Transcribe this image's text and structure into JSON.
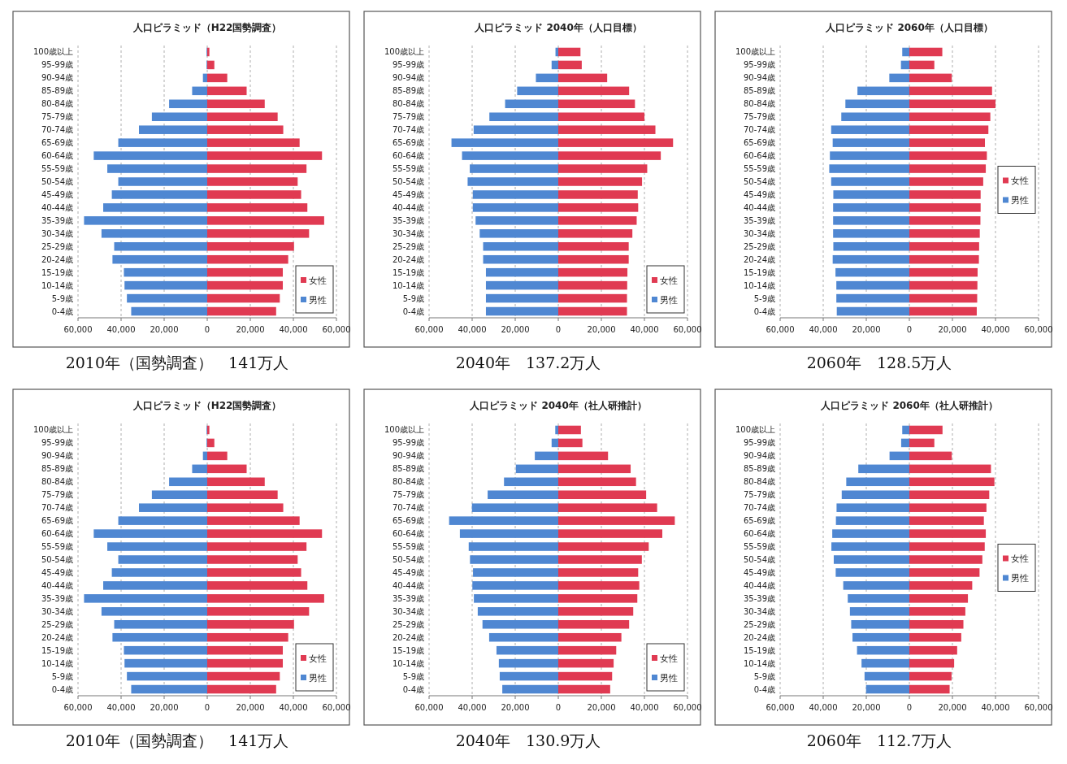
{
  "chart_data": [
    {
      "type": "bar",
      "orientation": "horizontal",
      "stacked": true,
      "title": "人口ピラミッド（H22国勢調査）",
      "categories": [
        "100歳以上",
        "95-99歳",
        "90-94歳",
        "85-89歳",
        "80-84歳",
        "75-79歳",
        "70-74歳",
        "65-69歳",
        "60-64歳",
        "55-59歳",
        "50-54歳",
        "45-49歳",
        "40-44歳",
        "35-39歳",
        "30-34歳",
        "25-29歳",
        "20-24歳",
        "15-19歳",
        "10-14歳",
        "5-9歳",
        "0-4歳"
      ],
      "series": [
        {
          "name": "女性",
          "color": "#e03a52",
          "values": [
            1000,
            3300,
            9300,
            18300,
            26700,
            32700,
            35300,
            42900,
            53300,
            46100,
            42000,
            43600,
            46500,
            54300,
            47300,
            40300,
            37600,
            35100,
            35100,
            33700,
            32000
          ]
        },
        {
          "name": "男性",
          "color": "#4f87d2",
          "values": [
            -300,
            -300,
            -2000,
            -7000,
            -17700,
            -25700,
            -31700,
            -41300,
            -52700,
            -46400,
            -41300,
            -44300,
            -48300,
            -57200,
            -49100,
            -43200,
            -44000,
            -38700,
            -38400,
            -37300,
            -35300
          ]
        }
      ],
      "xlim": [
        -60000,
        60000
      ],
      "xticks": [
        {
          "value": -60000,
          "label": "60,000"
        },
        {
          "value": -40000,
          "label": "40,000"
        },
        {
          "value": -20000,
          "label": "20,000"
        },
        {
          "value": 0,
          "label": "0"
        },
        {
          "value": 20000,
          "label": "20,000"
        },
        {
          "value": 40000,
          "label": "40,000"
        },
        {
          "value": 60000,
          "label": "60,000"
        }
      ],
      "grid": "x",
      "legend": "bottom right",
      "annotations": [
        "2010年（国勢調査）　141万人"
      ]
    },
    {
      "type": "bar",
      "orientation": "horizontal",
      "stacked": true,
      "title": "人口ピラミッド 2040年（人口目標）",
      "categories": [
        "100歳以上",
        "95-99歳",
        "90-94歳",
        "85-89歳",
        "80-84歳",
        "75-79歳",
        "70-74歳",
        "65-69歳",
        "60-64歳",
        "55-59歳",
        "50-54歳",
        "45-49歳",
        "40-44歳",
        "35-39歳",
        "30-34歳",
        "25-29歳",
        "20-24歳",
        "15-19歳",
        "10-14歳",
        "5-9歳",
        "0-4歳"
      ],
      "series": [
        {
          "name": "女性",
          "color": "#e03a52",
          "values": [
            10300,
            10900,
            22700,
            32900,
            35600,
            40000,
            45100,
            53300,
            47600,
            41300,
            38900,
            36900,
            37100,
            36400,
            34400,
            32700,
            32700,
            32100,
            32000,
            31900,
            31900
          ]
        },
        {
          "name": "男性",
          "color": "#4f87d2",
          "values": [
            -1300,
            -3100,
            -10400,
            -19100,
            -24700,
            -32000,
            -39300,
            -49600,
            -44700,
            -41100,
            -42100,
            -39700,
            -39700,
            -38400,
            -36500,
            -34900,
            -34900,
            -33600,
            -33600,
            -33600,
            -33600
          ]
        }
      ],
      "xlim": [
        -60000,
        60000
      ],
      "xticks": [
        {
          "value": -60000,
          "label": "60,000"
        },
        {
          "value": -40000,
          "label": "40,000"
        },
        {
          "value": -20000,
          "label": "20,000"
        },
        {
          "value": 0,
          "label": "0"
        },
        {
          "value": 20000,
          "label": "20,000"
        },
        {
          "value": 40000,
          "label": "40,000"
        },
        {
          "value": 60000,
          "label": "60,000"
        }
      ],
      "grid": "x",
      "legend": "bottom right",
      "annotations": [
        "2040年　137.2万人"
      ]
    },
    {
      "type": "bar",
      "orientation": "horizontal",
      "stacked": true,
      "title": "人口ピラミッド 2060年（人口目標）",
      "categories": [
        "100歳以上",
        "95-99歳",
        "90-94歳",
        "85-89歳",
        "80-84歳",
        "75-79歳",
        "70-74歳",
        "65-69歳",
        "60-64歳",
        "55-59歳",
        "50-54歳",
        "45-49歳",
        "40-44歳",
        "35-39歳",
        "30-34歳",
        "25-29歳",
        "20-24歳",
        "15-19歳",
        "10-14歳",
        "5-9歳",
        "0-4歳"
      ],
      "series": [
        {
          "name": "女性",
          "color": "#e03a52",
          "values": [
            15300,
            11600,
            19700,
            38400,
            40000,
            37600,
            36700,
            35100,
            36000,
            35500,
            34300,
            33100,
            33100,
            33000,
            32700,
            32400,
            32300,
            31700,
            31600,
            31500,
            31300
          ]
        },
        {
          "name": "男性",
          "color": "#4f87d2",
          "values": [
            -3300,
            -3900,
            -9300,
            -24100,
            -29700,
            -31600,
            -36300,
            -35600,
            -36900,
            -37200,
            -36300,
            -35300,
            -35400,
            -35400,
            -35400,
            -35300,
            -35600,
            -34300,
            -33900,
            -33900,
            -33700
          ]
        }
      ],
      "xlim": [
        -60000,
        60000
      ],
      "xticks": [
        {
          "value": -60000,
          "label": "60,000"
        },
        {
          "value": -40000,
          "label": "40,000"
        },
        {
          "value": -20000,
          "label": "20,000"
        },
        {
          "value": 0,
          "label": "0"
        },
        {
          "value": 20000,
          "label": "20,000"
        },
        {
          "value": 40000,
          "label": "40,000"
        },
        {
          "value": 60000,
          "label": "60,000"
        }
      ],
      "grid": "x",
      "legend": "right",
      "annotations": [
        "2060年　128.5万人"
      ]
    },
    {
      "type": "bar",
      "orientation": "horizontal",
      "stacked": true,
      "title": "人口ピラミッド（H22国勢調査）",
      "categories": [
        "100歳以上",
        "95-99歳",
        "90-94歳",
        "85-89歳",
        "80-84歳",
        "75-79歳",
        "70-74歳",
        "65-69歳",
        "60-64歳",
        "55-59歳",
        "50-54歳",
        "45-49歳",
        "40-44歳",
        "35-39歳",
        "30-34歳",
        "25-29歳",
        "20-24歳",
        "15-19歳",
        "10-14歳",
        "5-9歳",
        "0-4歳"
      ],
      "series": [
        {
          "name": "女性",
          "color": "#e03a52",
          "values": [
            1000,
            3300,
            9300,
            18300,
            26700,
            32700,
            35300,
            42900,
            53300,
            46100,
            42000,
            43600,
            46500,
            54300,
            47300,
            40300,
            37600,
            35100,
            35100,
            33700,
            32000
          ]
        },
        {
          "name": "男性",
          "color": "#4f87d2",
          "values": [
            -300,
            -300,
            -2000,
            -7000,
            -17700,
            -25700,
            -31700,
            -41300,
            -52700,
            -46400,
            -41300,
            -44300,
            -48300,
            -57200,
            -49100,
            -43200,
            -44000,
            -38700,
            -38400,
            -37300,
            -35300
          ]
        }
      ],
      "xlim": [
        -60000,
        60000
      ],
      "xticks": [
        {
          "value": -60000,
          "label": "60,000"
        },
        {
          "value": -40000,
          "label": "40,000"
        },
        {
          "value": -20000,
          "label": "20,000"
        },
        {
          "value": 0,
          "label": "0"
        },
        {
          "value": 20000,
          "label": "20,000"
        },
        {
          "value": 40000,
          "label": "40,000"
        },
        {
          "value": 60000,
          "label": "60,000"
        }
      ],
      "grid": "x",
      "legend": "bottom right",
      "annotations": [
        "2010年（国勢調査）　141万人"
      ]
    },
    {
      "type": "bar",
      "orientation": "horizontal",
      "stacked": true,
      "title": "人口ピラミッド 2040年（社人研推計）",
      "categories": [
        "100歳以上",
        "95-99歳",
        "90-94歳",
        "85-89歳",
        "80-84歳",
        "75-79歳",
        "70-74歳",
        "65-69歳",
        "60-64歳",
        "55-59歳",
        "50-54歳",
        "45-49歳",
        "40-44歳",
        "35-39歳",
        "30-34歳",
        "25-29歳",
        "20-24歳",
        "15-19歳",
        "10-14歳",
        "5-9歳",
        "0-4歳"
      ],
      "series": [
        {
          "name": "女性",
          "color": "#e03a52",
          "values": [
            10500,
            11200,
            23100,
            33600,
            36100,
            40800,
            45900,
            54100,
            48300,
            42000,
            38800,
            37100,
            37600,
            36700,
            34800,
            32900,
            29300,
            26900,
            25700,
            25000,
            24100
          ]
        },
        {
          "name": "男性",
          "color": "#4f87d2",
          "values": [
            -1400,
            -3100,
            -10900,
            -19700,
            -25200,
            -32800,
            -40100,
            -50700,
            -45700,
            -41600,
            -41000,
            -39600,
            -39900,
            -39200,
            -37400,
            -35200,
            -32100,
            -28700,
            -27600,
            -27200,
            -26000
          ]
        }
      ],
      "xlim": [
        -60000,
        60000
      ],
      "xticks": [
        {
          "value": -60000,
          "label": "60,000"
        },
        {
          "value": -40000,
          "label": "40,000"
        },
        {
          "value": -20000,
          "label": "20,000"
        },
        {
          "value": 0,
          "label": "0"
        },
        {
          "value": 20000,
          "label": "20,000"
        },
        {
          "value": 40000,
          "label": "40,000"
        },
        {
          "value": 60000,
          "label": "60,000"
        }
      ],
      "grid": "x",
      "legend": "bottom right",
      "annotations": [
        "2040年　130.9万人"
      ]
    },
    {
      "type": "bar",
      "orientation": "horizontal",
      "stacked": true,
      "title": "人口ピラミッド 2060年（社人研推計）",
      "categories": [
        "100歳以上",
        "95-99歳",
        "90-94歳",
        "85-89歳",
        "80-84歳",
        "75-79歳",
        "70-74歳",
        "65-69歳",
        "60-64歳",
        "55-59歳",
        "50-54歳",
        "45-49歳",
        "40-44歳",
        "35-39歳",
        "30-34歳",
        "25-29歳",
        "20-24歳",
        "15-19歳",
        "10-14歳",
        "5-9歳",
        "0-4歳"
      ],
      "series": [
        {
          "name": "女性",
          "color": "#e03a52",
          "values": [
            15400,
            11600,
            19700,
            37900,
            39500,
            37100,
            35800,
            34600,
            35500,
            35000,
            33900,
            32600,
            29200,
            27200,
            26000,
            25100,
            24100,
            22200,
            20800,
            19600,
            18700
          ]
        },
        {
          "name": "男性",
          "color": "#4f87d2",
          "values": [
            -3300,
            -3800,
            -9200,
            -23700,
            -29300,
            -31400,
            -33800,
            -34100,
            -35800,
            -36200,
            -35100,
            -34200,
            -30700,
            -28600,
            -27600,
            -27000,
            -26400,
            -24300,
            -22200,
            -20800,
            -20100
          ]
        }
      ],
      "xlim": [
        -60000,
        60000
      ],
      "xticks": [
        {
          "value": -60000,
          "label": "60,000"
        },
        {
          "value": -40000,
          "label": "40,000"
        },
        {
          "value": -20000,
          "label": "20,000"
        },
        {
          "value": 0,
          "label": "0"
        },
        {
          "value": 20000,
          "label": "20,000"
        },
        {
          "value": 40000,
          "label": "40,000"
        },
        {
          "value": 60000,
          "label": "60,000"
        }
      ],
      "grid": "x",
      "legend": "right",
      "annotations": [
        "2060年　112.7万人"
      ]
    }
  ]
}
